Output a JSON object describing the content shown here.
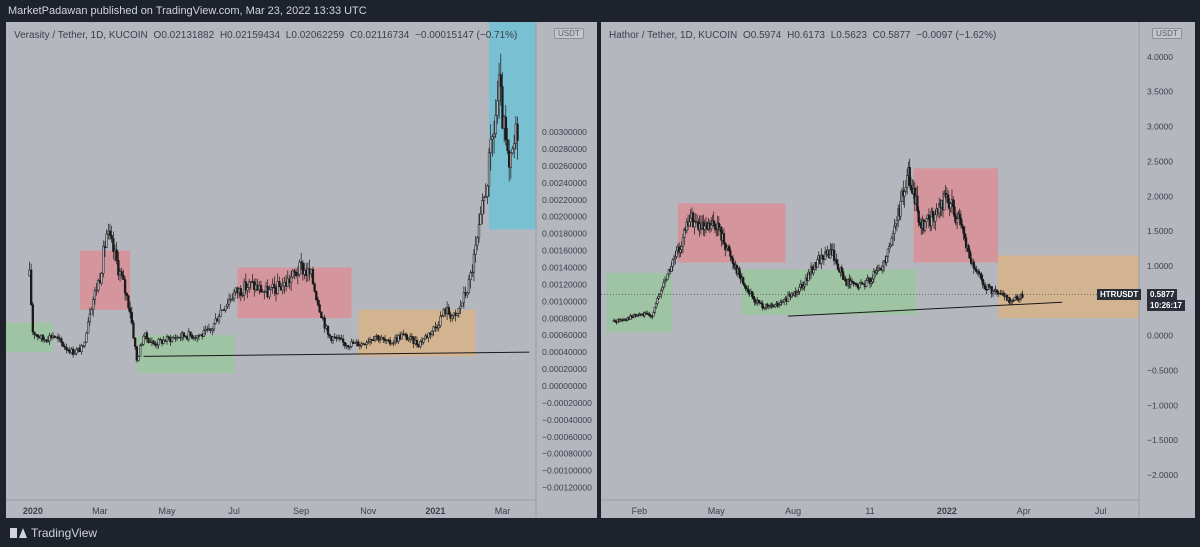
{
  "header": {
    "publisher_text": "MarketPadawan published on TradingView.com, Mar 23, 2022 13:33 UTC"
  },
  "footer": {
    "brand": "TradingView"
  },
  "colors": {
    "panel_bg": "#b5b7bf",
    "red_zone": "#d98f96",
    "green_zone": "#9bc79f",
    "orange_zone": "#d8b487",
    "blue_zone": "#6fc2d5",
    "candle": "#1a1a1a"
  },
  "chart_data": [
    {
      "type": "candlestick",
      "title": "Verasity / Tether, 1D, KUCOIN",
      "ohlc": {
        "open": "O0.02131882",
        "high": "H0.02159434",
        "low": "L0.02062259",
        "close": "C0.02116734",
        "change": "−0.00015147 (−0.71%)"
      },
      "unit": "USDT",
      "ylim": [
        -0.0013,
        0.0043
      ],
      "y_ticks": [
        "0.00300000",
        "0.00280000",
        "0.00260000",
        "0.00240000",
        "0.00220000",
        "0.00200000",
        "0.00180000",
        "0.00160000",
        "0.00140000",
        "0.00120000",
        "0.00100000",
        "0.00080000",
        "0.00060000",
        "0.00040000",
        "0.00020000",
        "0.00000000",
        "−0.00020000",
        "−0.00040000",
        "−0.00060000",
        "−0.00080000",
        "−0.00100000",
        "−0.00120000"
      ],
      "x_ticks": [
        "2020",
        "Mar",
        "May",
        "Jul",
        "Sep",
        "Nov",
        "2021",
        "Mar"
      ],
      "x_tick_months": [
        0,
        2,
        4,
        6,
        8,
        10,
        12,
        14
      ],
      "xlim_months": [
        -0.8,
        15.0
      ],
      "price_path": [
        [
          -0.1,
          0.0013
        ],
        [
          0.0,
          0.00065
        ],
        [
          0.3,
          0.00055
        ],
        [
          0.6,
          0.0006
        ],
        [
          1.0,
          0.00045
        ],
        [
          1.2,
          0.0004
        ],
        [
          1.5,
          0.00045
        ],
        [
          1.7,
          0.0009
        ],
        [
          2.0,
          0.0013
        ],
        [
          2.2,
          0.0018
        ],
        [
          2.4,
          0.0016
        ],
        [
          2.7,
          0.0012
        ],
        [
          2.9,
          0.0009
        ],
        [
          3.1,
          0.0003
        ],
        [
          3.3,
          0.0006
        ],
        [
          3.6,
          0.0005
        ],
        [
          4.0,
          0.00055
        ],
        [
          4.5,
          0.0006
        ],
        [
          5.0,
          0.0006
        ],
        [
          5.3,
          0.00065
        ],
        [
          5.6,
          0.0009
        ],
        [
          6.0,
          0.0011
        ],
        [
          6.5,
          0.0012
        ],
        [
          7.0,
          0.0011
        ],
        [
          7.5,
          0.0012
        ],
        [
          8.0,
          0.0014
        ],
        [
          8.3,
          0.0013
        ],
        [
          8.5,
          0.001
        ],
        [
          8.8,
          0.0006
        ],
        [
          9.3,
          0.0005
        ],
        [
          9.8,
          0.0005
        ],
        [
          10.2,
          0.0006
        ],
        [
          10.6,
          0.0005
        ],
        [
          11.0,
          0.0006
        ],
        [
          11.5,
          0.0005
        ],
        [
          12.0,
          0.0007
        ],
        [
          12.3,
          0.0009
        ],
        [
          12.6,
          0.0008
        ],
        [
          13.0,
          0.0012
        ],
        [
          13.3,
          0.0018
        ],
        [
          13.6,
          0.0026
        ],
        [
          13.9,
          0.0035
        ],
        [
          14.2,
          0.0025
        ],
        [
          14.5,
          0.0032
        ]
      ],
      "zones": [
        {
          "color": "green",
          "x": [
            -0.8,
            0.6
          ],
          "y": [
            0.0004,
            0.00075
          ]
        },
        {
          "color": "red",
          "x": [
            1.4,
            2.9
          ],
          "y": [
            0.0009,
            0.0016
          ]
        },
        {
          "color": "green",
          "x": [
            3.1,
            6.0
          ],
          "y": [
            0.00015,
            0.0006
          ]
        },
        {
          "color": "red",
          "x": [
            6.1,
            9.5
          ],
          "y": [
            0.0008,
            0.0014
          ]
        },
        {
          "color": "orange",
          "x": [
            9.7,
            13.2
          ],
          "y": [
            0.00035,
            0.0009
          ]
        },
        {
          "color": "blue",
          "x": [
            13.6,
            15.0
          ],
          "y": [
            0.00185,
            0.0043
          ]
        }
      ],
      "trendline": {
        "x": [
          3.3,
          14.8
        ],
        "y": [
          0.00035,
          0.0004
        ]
      }
    },
    {
      "type": "candlestick",
      "title": "Hathor / Tether, 1D, KUCOIN",
      "ohlc": {
        "open": "O0.5974",
        "high": "H0.6173",
        "low": "L0.5623",
        "close": "C0.5877",
        "change": "−0.0097 (−1.62%)"
      },
      "unit": "USDT",
      "ylim": [
        -2.3,
        4.5
      ],
      "y_ticks": [
        "4.0000",
        "3.5000",
        "3.0000",
        "2.5000",
        "2.0000",
        "1.5000",
        "1.0000",
        "0.5000",
        "0.0000",
        "−0.5000",
        "−1.0000",
        "−1.5000",
        "−2.0000"
      ],
      "x_ticks": [
        "Feb",
        "May",
        "Aug",
        "11",
        "2022",
        "Apr",
        "Jul"
      ],
      "x_tick_months": [
        0,
        3,
        6,
        9,
        12,
        15,
        18
      ],
      "xlim_months": [
        -1.5,
        19.5
      ],
      "price_path": [
        [
          -1.0,
          0.2
        ],
        [
          -0.5,
          0.25
        ],
        [
          0.0,
          0.3
        ],
        [
          0.5,
          0.3
        ],
        [
          1.0,
          0.8
        ],
        [
          1.5,
          1.2
        ],
        [
          2.0,
          1.7
        ],
        [
          2.5,
          1.5
        ],
        [
          3.0,
          1.6
        ],
        [
          3.5,
          1.2
        ],
        [
          4.0,
          0.8
        ],
        [
          4.5,
          0.5
        ],
        [
          5.0,
          0.4
        ],
        [
          5.5,
          0.45
        ],
        [
          6.0,
          0.6
        ],
        [
          6.5,
          0.8
        ],
        [
          7.0,
          1.1
        ],
        [
          7.5,
          1.2
        ],
        [
          8.0,
          0.8
        ],
        [
          8.5,
          0.7
        ],
        [
          9.0,
          0.8
        ],
        [
          9.5,
          1.0
        ],
        [
          10.0,
          1.6
        ],
        [
          10.5,
          2.3
        ],
        [
          11.0,
          1.6
        ],
        [
          11.5,
          1.7
        ],
        [
          12.0,
          2.0
        ],
        [
          12.5,
          1.6
        ],
        [
          13.0,
          1.0
        ],
        [
          13.5,
          0.7
        ],
        [
          14.0,
          0.6
        ],
        [
          14.5,
          0.5
        ],
        [
          15.0,
          0.6
        ]
      ],
      "zones": [
        {
          "color": "green",
          "x": [
            -1.3,
            1.3
          ],
          "y": [
            0.05,
            0.9
          ]
        },
        {
          "color": "red",
          "x": [
            1.5,
            5.7
          ],
          "y": [
            1.05,
            1.9
          ]
        },
        {
          "color": "green",
          "x": [
            4.0,
            10.8
          ],
          "y": [
            0.3,
            0.95
          ]
        },
        {
          "color": "red",
          "x": [
            10.7,
            14.0
          ],
          "y": [
            1.05,
            2.4
          ]
        },
        {
          "color": "orange",
          "x": [
            14.0,
            19.5
          ],
          "y": [
            0.25,
            1.15
          ]
        }
      ],
      "trendline": {
        "x": [
          5.8,
          16.5
        ],
        "y": [
          0.28,
          0.48
        ]
      },
      "price_marker": {
        "value": 0.5877,
        "symbol": "HTRUSDT",
        "price": "0.5877",
        "countdown": "10:26:17"
      }
    }
  ]
}
